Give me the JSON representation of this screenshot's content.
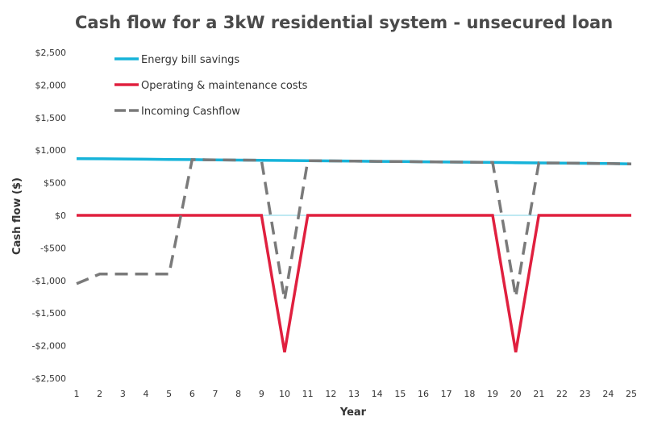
{
  "chart_data": {
    "type": "line",
    "title": "Cash flow for a 3kW residential system - unsecured loan",
    "xlabel": "Year",
    "ylabel": "Cash flow ($)",
    "x": [
      1,
      2,
      3,
      4,
      5,
      6,
      7,
      8,
      9,
      10,
      11,
      12,
      13,
      14,
      15,
      16,
      17,
      18,
      19,
      20,
      21,
      22,
      23,
      24,
      25
    ],
    "xlim": [
      1,
      25
    ],
    "ylim": [
      -2500,
      2500
    ],
    "y_ticks": [
      2500,
      2000,
      1500,
      1000,
      500,
      0,
      -500,
      -1000,
      -1500,
      -2000,
      -2500
    ],
    "y_tick_labels": [
      "$2,500",
      "$2,000",
      "$1,500",
      "$1,000",
      "$500",
      "$0",
      "-$500",
      "-$1,000",
      "-$1,500",
      "-$2,000",
      "-$2,500"
    ],
    "x_tick_labels": [
      "1",
      "2",
      "3",
      "4",
      "5",
      "6",
      "7",
      "8",
      "9",
      "10",
      "11",
      "12",
      "13",
      "14",
      "15",
      "16",
      "17",
      "18",
      "19",
      "20",
      "21",
      "22",
      "23",
      "24",
      "25"
    ],
    "grid": false,
    "legend_position": "top-left",
    "series": [
      {
        "name": "Energy bill savings",
        "color": "#16b3d9",
        "style": "solid",
        "values": [
          870,
          868,
          865,
          862,
          858,
          855,
          852,
          848,
          845,
          842,
          838,
          835,
          832,
          828,
          825,
          822,
          818,
          815,
          812,
          808,
          805,
          802,
          798,
          795,
          790
        ]
      },
      {
        "name": "Operating & maintenance costs",
        "color": "#e0203f",
        "style": "solid",
        "values": [
          0,
          0,
          0,
          0,
          0,
          0,
          0,
          0,
          0,
          -2100,
          0,
          0,
          0,
          0,
          0,
          0,
          0,
          0,
          0,
          -2100,
          0,
          0,
          0,
          0,
          0
        ]
      },
      {
        "name": "Incoming Cashflow",
        "color": "#7a7a7a",
        "style": "dashed",
        "values": [
          -1050,
          -900,
          -900,
          -900,
          -900,
          855,
          852,
          848,
          845,
          -1300,
          838,
          835,
          832,
          828,
          825,
          822,
          818,
          815,
          812,
          -1250,
          805,
          802,
          798,
          795,
          790
        ]
      }
    ]
  }
}
